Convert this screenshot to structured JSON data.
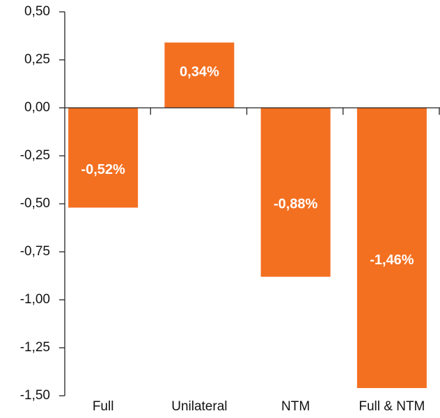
{
  "chart_data": {
    "type": "bar",
    "categories": [
      "Full",
      "Unilateral",
      "NTM",
      "Full & NTM"
    ],
    "values": [
      -0.52,
      0.34,
      -0.88,
      -1.46
    ],
    "value_labels": [
      "-0,52%",
      "0,34%",
      "-0,88%",
      "-1,46%"
    ],
    "color": "#f37021",
    "ylim": [
      -1.5,
      0.5
    ],
    "yticks": [
      {
        "value": 0.5,
        "label": "0,50"
      },
      {
        "value": 0.25,
        "label": "0,25"
      },
      {
        "value": 0,
        "label": "0,00"
      },
      {
        "value": -0.25,
        "label": "-0,25"
      },
      {
        "value": -0.5,
        "label": "-0,50"
      },
      {
        "value": -0.75,
        "label": "-0,75"
      },
      {
        "value": -1,
        "label": "-1,00"
      },
      {
        "value": -1.25,
        "label": "-1,25"
      },
      {
        "value": -1.5,
        "label": "-1,50"
      }
    ],
    "grid": false
  }
}
